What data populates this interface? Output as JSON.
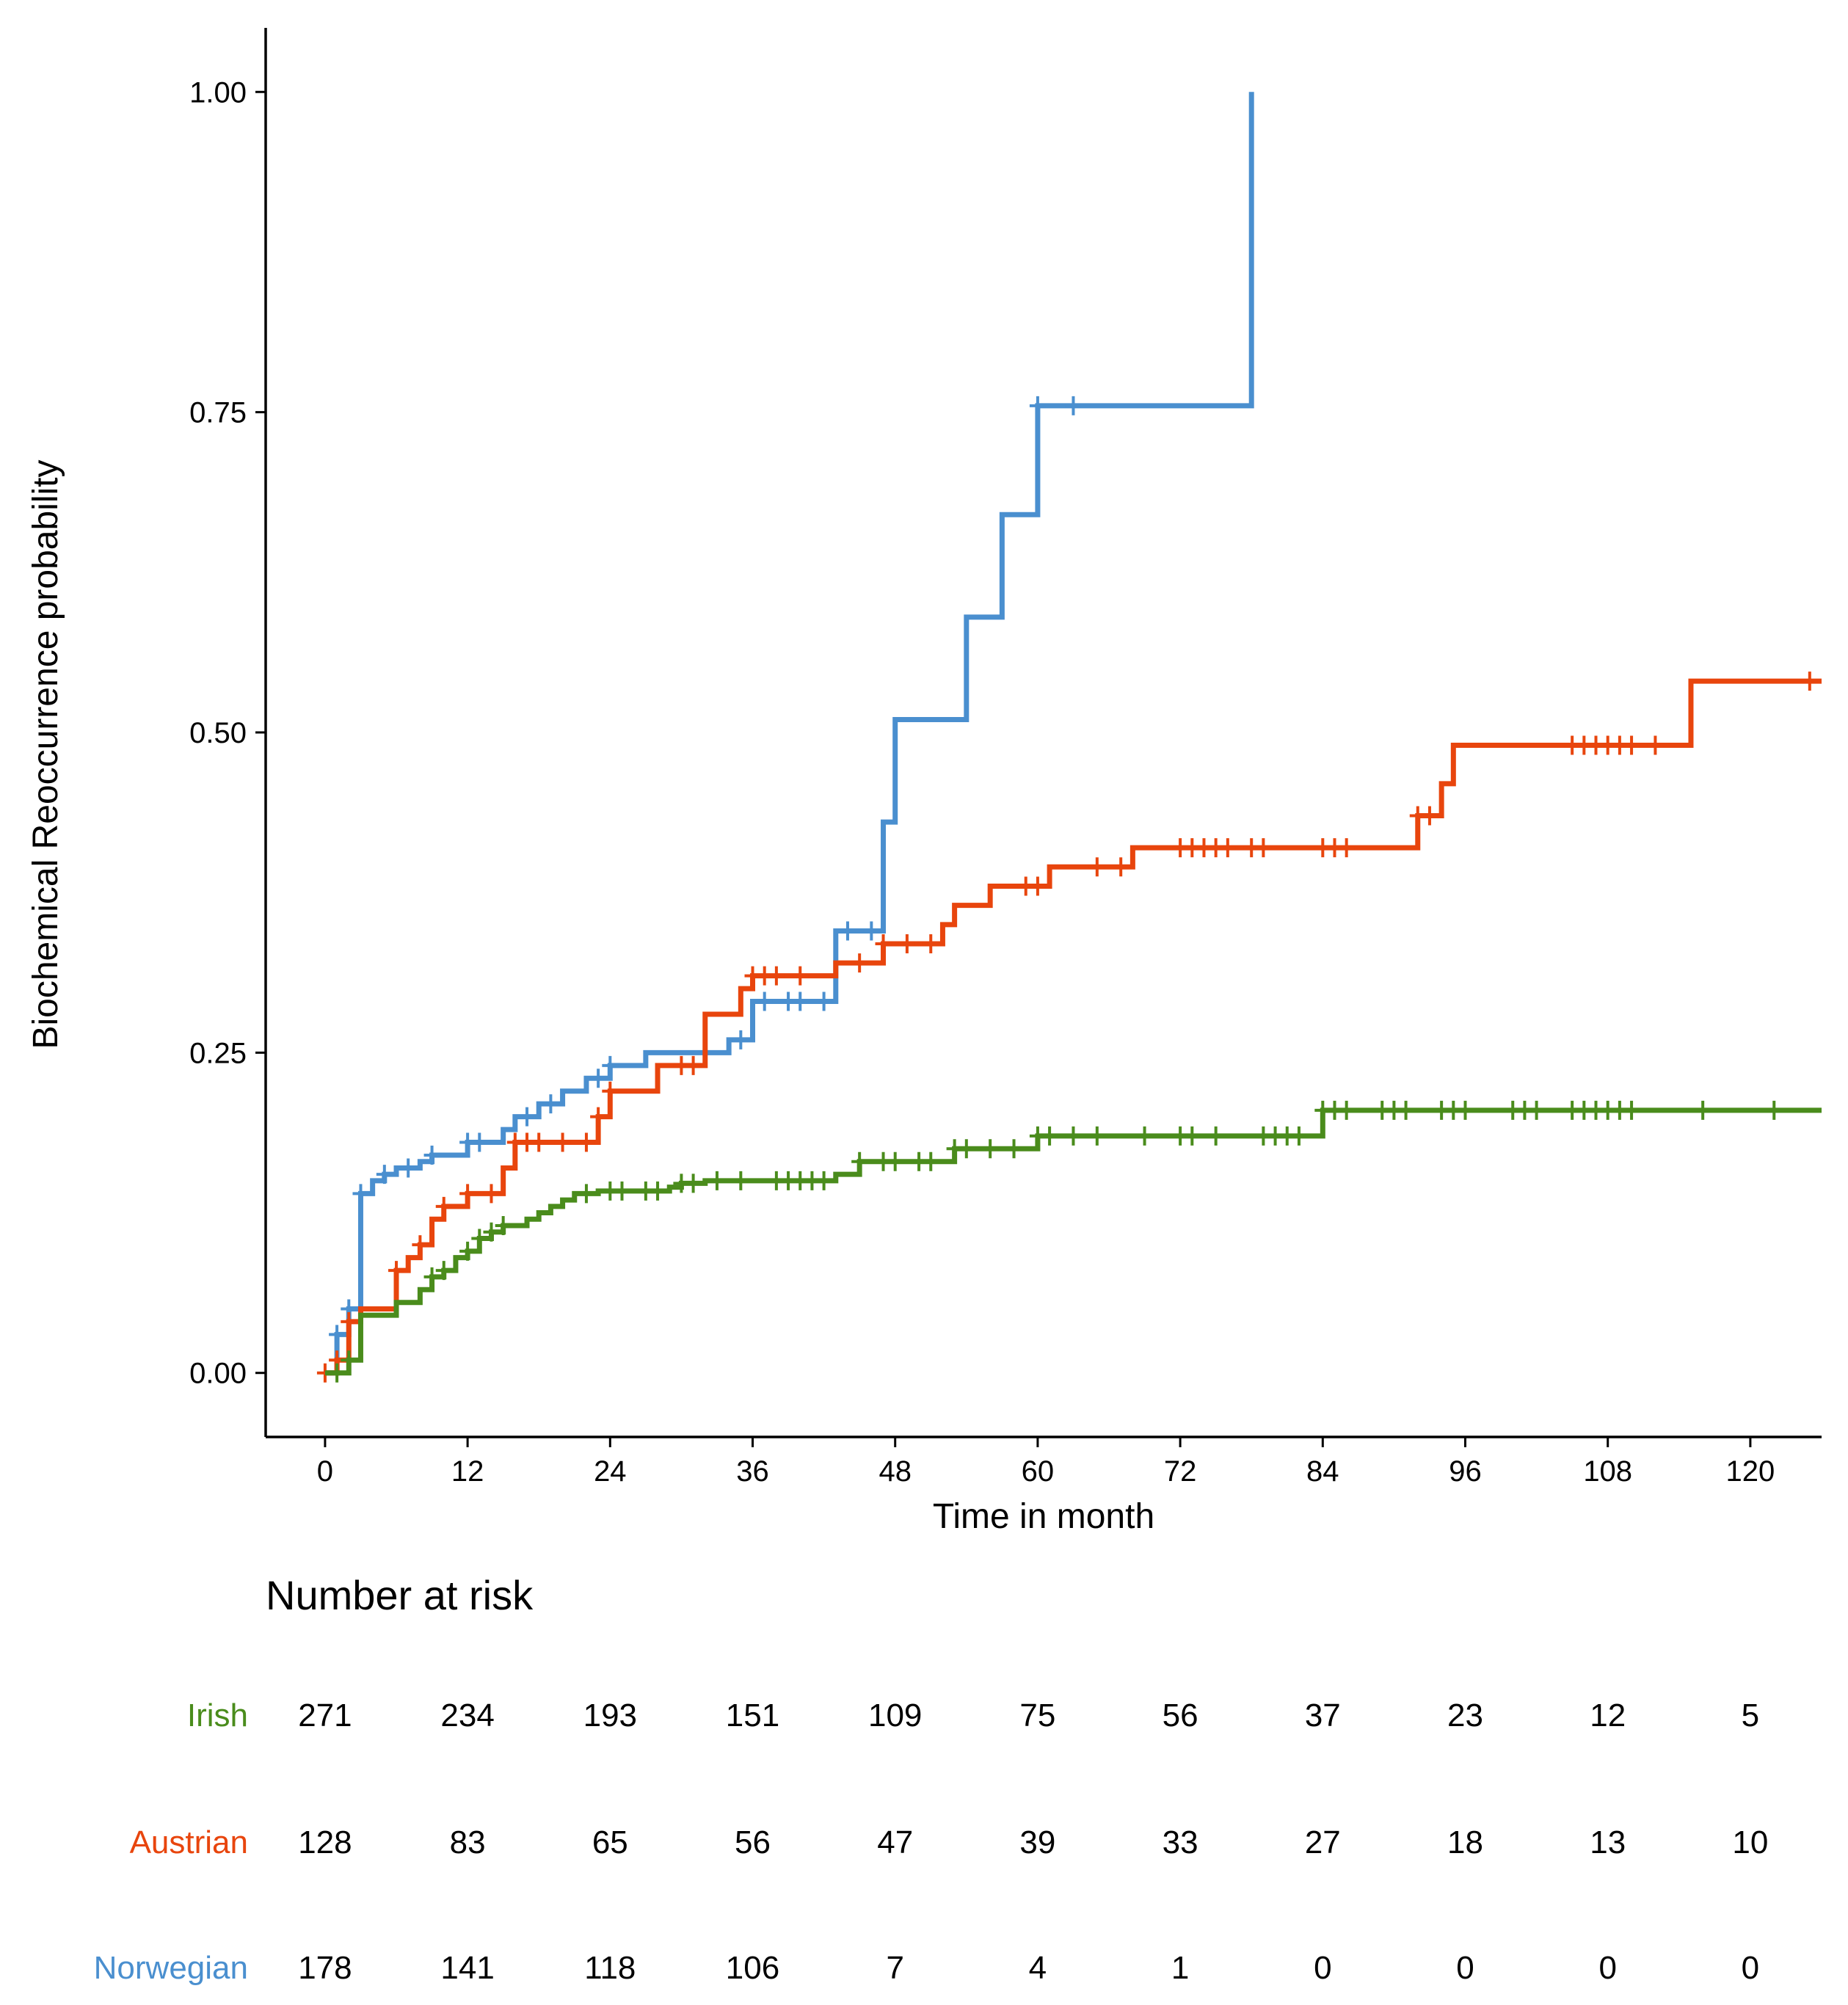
{
  "chart_data": {
    "type": "line",
    "subtype": "kaplan-meier-step",
    "title": "",
    "xlabel": "Time in month",
    "ylabel": "Biochemical Reoccurrence probability",
    "xlim": [
      -5,
      126
    ],
    "ylim": [
      -0.05,
      1.05
    ],
    "xticks": [
      0,
      12,
      24,
      36,
      48,
      60,
      72,
      84,
      96,
      108,
      120
    ],
    "yticks": [
      0.0,
      0.25,
      0.5,
      0.75,
      1.0
    ],
    "ytick_labels": [
      "0.00",
      "0.25",
      "0.50",
      "0.75",
      "1.00"
    ],
    "grid": false,
    "legend": "none",
    "series": [
      {
        "name": "Irish",
        "color": "#4a8c1c",
        "steps": [
          [
            0,
            0
          ],
          [
            2,
            0.01
          ],
          [
            3,
            0.045
          ],
          [
            6,
            0.055
          ],
          [
            8,
            0.065
          ],
          [
            9,
            0.075
          ],
          [
            10,
            0.08
          ],
          [
            11,
            0.09
          ],
          [
            12,
            0.095
          ],
          [
            13,
            0.105
          ],
          [
            14,
            0.11
          ],
          [
            15,
            0.115
          ],
          [
            17,
            0.12
          ],
          [
            18,
            0.125
          ],
          [
            19,
            0.13
          ],
          [
            20,
            0.135
          ],
          [
            21,
            0.14
          ],
          [
            23,
            0.142
          ],
          [
            29,
            0.145
          ],
          [
            30,
            0.148
          ],
          [
            32,
            0.15
          ],
          [
            43,
            0.155
          ],
          [
            45,
            0.165
          ],
          [
            53,
            0.175
          ],
          [
            60,
            0.185
          ],
          [
            84,
            0.205
          ],
          [
            126,
            0.205
          ]
        ],
        "censors": [
          [
            1,
            0
          ],
          [
            2,
            0.01
          ],
          [
            9,
            0.075
          ],
          [
            10,
            0.08
          ],
          [
            12,
            0.095
          ],
          [
            13,
            0.105
          ],
          [
            14,
            0.11
          ],
          [
            15,
            0.115
          ],
          [
            22,
            0.14
          ],
          [
            24,
            0.142
          ],
          [
            25,
            0.142
          ],
          [
            27,
            0.142
          ],
          [
            28,
            0.142
          ],
          [
            30,
            0.148
          ],
          [
            31,
            0.148
          ],
          [
            33,
            0.15
          ],
          [
            35,
            0.15
          ],
          [
            38,
            0.15
          ],
          [
            39,
            0.15
          ],
          [
            40,
            0.15
          ],
          [
            41,
            0.15
          ],
          [
            42,
            0.15
          ],
          [
            45,
            0.165
          ],
          [
            47,
            0.165
          ],
          [
            48,
            0.165
          ],
          [
            50,
            0.165
          ],
          [
            51,
            0.165
          ],
          [
            53,
            0.175
          ],
          [
            54,
            0.175
          ],
          [
            56,
            0.175
          ],
          [
            58,
            0.175
          ],
          [
            60,
            0.185
          ],
          [
            61,
            0.185
          ],
          [
            63,
            0.185
          ],
          [
            65,
            0.185
          ],
          [
            69,
            0.185
          ],
          [
            72,
            0.185
          ],
          [
            73,
            0.185
          ],
          [
            75,
            0.185
          ],
          [
            79,
            0.185
          ],
          [
            80,
            0.185
          ],
          [
            81,
            0.185
          ],
          [
            82,
            0.185
          ],
          [
            84,
            0.205
          ],
          [
            85,
            0.205
          ],
          [
            86,
            0.205
          ],
          [
            89,
            0.205
          ],
          [
            90,
            0.205
          ],
          [
            91,
            0.205
          ],
          [
            94,
            0.205
          ],
          [
            95,
            0.205
          ],
          [
            96,
            0.205
          ],
          [
            100,
            0.205
          ],
          [
            101,
            0.205
          ],
          [
            102,
            0.205
          ],
          [
            105,
            0.205
          ],
          [
            106,
            0.205
          ],
          [
            107,
            0.205
          ],
          [
            108,
            0.205
          ],
          [
            109,
            0.205
          ],
          [
            110,
            0.205
          ],
          [
            116,
            0.205
          ],
          [
            122,
            0.205
          ]
        ]
      },
      {
        "name": "Austrian",
        "color": "#e8450d",
        "steps": [
          [
            0,
            0
          ],
          [
            1,
            0.01
          ],
          [
            2,
            0.04
          ],
          [
            3,
            0.05
          ],
          [
            6,
            0.08
          ],
          [
            7,
            0.09
          ],
          [
            8,
            0.1
          ],
          [
            9,
            0.12
          ],
          [
            10,
            0.13
          ],
          [
            12,
            0.14
          ],
          [
            15,
            0.16
          ],
          [
            16,
            0.18
          ],
          [
            23,
            0.2
          ],
          [
            24,
            0.22
          ],
          [
            28,
            0.24
          ],
          [
            32,
            0.28
          ],
          [
            35,
            0.3
          ],
          [
            36,
            0.31
          ],
          [
            43,
            0.32
          ],
          [
            47,
            0.335
          ],
          [
            52,
            0.35
          ],
          [
            53,
            0.365
          ],
          [
            56,
            0.38
          ],
          [
            61,
            0.395
          ],
          [
            68,
            0.41
          ],
          [
            92,
            0.435
          ],
          [
            94,
            0.46
          ],
          [
            95,
            0.49
          ],
          [
            115,
            0.54
          ],
          [
            126,
            0.54
          ]
        ],
        "censors": [
          [
            0,
            0
          ],
          [
            1,
            0.01
          ],
          [
            2,
            0.04
          ],
          [
            6,
            0.08
          ],
          [
            8,
            0.1
          ],
          [
            10,
            0.13
          ],
          [
            12,
            0.14
          ],
          [
            14,
            0.14
          ],
          [
            16,
            0.18
          ],
          [
            17,
            0.18
          ],
          [
            18,
            0.18
          ],
          [
            20,
            0.18
          ],
          [
            22,
            0.18
          ],
          [
            23,
            0.2
          ],
          [
            24,
            0.22
          ],
          [
            30,
            0.24
          ],
          [
            31,
            0.24
          ],
          [
            36,
            0.31
          ],
          [
            37,
            0.31
          ],
          [
            38,
            0.31
          ],
          [
            40,
            0.31
          ],
          [
            45,
            0.32
          ],
          [
            47,
            0.335
          ],
          [
            49,
            0.335
          ],
          [
            51,
            0.335
          ],
          [
            59,
            0.38
          ],
          [
            60,
            0.38
          ],
          [
            65,
            0.395
          ],
          [
            67,
            0.395
          ],
          [
            72,
            0.41
          ],
          [
            73,
            0.41
          ],
          [
            74,
            0.41
          ],
          [
            75,
            0.41
          ],
          [
            76,
            0.41
          ],
          [
            78,
            0.41
          ],
          [
            79,
            0.41
          ],
          [
            84,
            0.41
          ],
          [
            85,
            0.41
          ],
          [
            86,
            0.41
          ],
          [
            92,
            0.435
          ],
          [
            93,
            0.435
          ],
          [
            105,
            0.49
          ],
          [
            106,
            0.49
          ],
          [
            107,
            0.49
          ],
          [
            108,
            0.49
          ],
          [
            109,
            0.49
          ],
          [
            110,
            0.49
          ],
          [
            112,
            0.49
          ],
          [
            125,
            0.54
          ]
        ]
      },
      {
        "name": "Norwegian",
        "color": "#4a8fcf",
        "steps": [
          [
            0,
            0
          ],
          [
            1,
            0.03
          ],
          [
            2,
            0.05
          ],
          [
            3,
            0.14
          ],
          [
            4,
            0.15
          ],
          [
            5,
            0.155
          ],
          [
            6,
            0.16
          ],
          [
            8,
            0.165
          ],
          [
            9,
            0.17
          ],
          [
            12,
            0.18
          ],
          [
            15,
            0.19
          ],
          [
            16,
            0.2
          ],
          [
            18,
            0.21
          ],
          [
            20,
            0.22
          ],
          [
            22,
            0.23
          ],
          [
            24,
            0.24
          ],
          [
            27,
            0.25
          ],
          [
            34,
            0.26
          ],
          [
            36,
            0.29
          ],
          [
            43,
            0.345
          ],
          [
            47,
            0.43
          ],
          [
            48,
            0.51
          ],
          [
            54,
            0.59
          ],
          [
            57,
            0.67
          ],
          [
            60,
            0.755
          ],
          [
            78,
            1.0
          ]
        ],
        "censors": [
          [
            1,
            0.03
          ],
          [
            2,
            0.05
          ],
          [
            3,
            0.14
          ],
          [
            5,
            0.155
          ],
          [
            7,
            0.16
          ],
          [
            9,
            0.17
          ],
          [
            12,
            0.18
          ],
          [
            13,
            0.18
          ],
          [
            17,
            0.2
          ],
          [
            19,
            0.21
          ],
          [
            23,
            0.23
          ],
          [
            24,
            0.24
          ],
          [
            35,
            0.26
          ],
          [
            37,
            0.29
          ],
          [
            39,
            0.29
          ],
          [
            40,
            0.29
          ],
          [
            42,
            0.29
          ],
          [
            44,
            0.345
          ],
          [
            46,
            0.345
          ],
          [
            60,
            0.755
          ],
          [
            63,
            0.755
          ]
        ]
      }
    ],
    "risk_table": {
      "title": "Number at risk",
      "times": [
        0,
        12,
        24,
        36,
        48,
        60,
        72,
        84,
        96,
        108,
        120
      ],
      "rows": [
        {
          "group": "Irish",
          "color": "#4a8c1c",
          "values": [
            271,
            234,
            193,
            151,
            109,
            75,
            56,
            37,
            23,
            12,
            5
          ]
        },
        {
          "group": "Austrian",
          "color": "#e8450d",
          "values": [
            128,
            83,
            65,
            56,
            47,
            39,
            33,
            27,
            18,
            13,
            10
          ]
        },
        {
          "group": "Norwegian",
          "color": "#4a8fcf",
          "values": [
            178,
            141,
            118,
            106,
            7,
            4,
            1,
            0,
            0,
            0,
            0
          ]
        }
      ]
    }
  }
}
